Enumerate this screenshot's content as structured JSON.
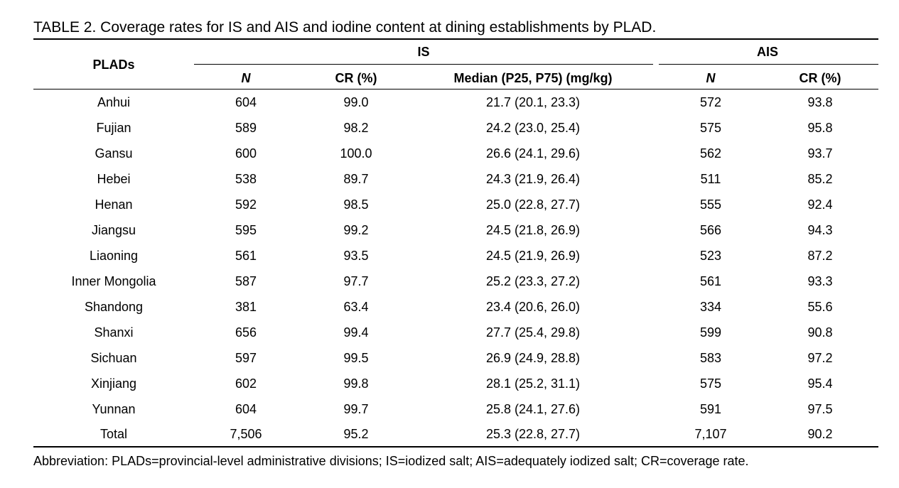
{
  "caption": "TABLE 2. Coverage rates for IS and AIS and iodine content at dining establishments by PLAD.",
  "headers": {
    "plads": "PLADs",
    "is_group": "IS",
    "ais_group": "AIS",
    "is_n": "N",
    "is_cr": "CR (%)",
    "is_median": "Median (P25, P75) (mg/kg)",
    "ais_n": "N",
    "ais_cr": "CR (%)"
  },
  "rows": [
    {
      "plad": "Anhui",
      "is_n": "604",
      "is_cr": "99.0",
      "median": "21.7 (20.1, 23.3)",
      "ais_n": "572",
      "ais_cr": "93.8"
    },
    {
      "plad": "Fujian",
      "is_n": "589",
      "is_cr": "98.2",
      "median": "24.2 (23.0, 25.4)",
      "ais_n": "575",
      "ais_cr": "95.8"
    },
    {
      "plad": "Gansu",
      "is_n": "600",
      "is_cr": "100.0",
      "median": "26.6 (24.1, 29.6)",
      "ais_n": "562",
      "ais_cr": "93.7"
    },
    {
      "plad": "Hebei",
      "is_n": "538",
      "is_cr": "89.7",
      "median": "24.3 (21.9, 26.4)",
      "ais_n": "511",
      "ais_cr": "85.2"
    },
    {
      "plad": "Henan",
      "is_n": "592",
      "is_cr": "98.5",
      "median": "25.0 (22.8, 27.7)",
      "ais_n": "555",
      "ais_cr": "92.4"
    },
    {
      "plad": "Jiangsu",
      "is_n": "595",
      "is_cr": "99.2",
      "median": "24.5 (21.8, 26.9)",
      "ais_n": "566",
      "ais_cr": "94.3"
    },
    {
      "plad": "Liaoning",
      "is_n": "561",
      "is_cr": "93.5",
      "median": "24.5 (21.9, 26.9)",
      "ais_n": "523",
      "ais_cr": "87.2"
    },
    {
      "plad": "Inner Mongolia",
      "is_n": "587",
      "is_cr": "97.7",
      "median": "25.2 (23.3, 27.2)",
      "ais_n": "561",
      "ais_cr": "93.3"
    },
    {
      "plad": "Shandong",
      "is_n": "381",
      "is_cr": "63.4",
      "median": "23.4 (20.6, 26.0)",
      "ais_n": "334",
      "ais_cr": "55.6"
    },
    {
      "plad": "Shanxi",
      "is_n": "656",
      "is_cr": "99.4",
      "median": "27.7 (25.4, 29.8)",
      "ais_n": "599",
      "ais_cr": "90.8"
    },
    {
      "plad": "Sichuan",
      "is_n": "597",
      "is_cr": "99.5",
      "median": "26.9 (24.9, 28.8)",
      "ais_n": "583",
      "ais_cr": "97.2"
    },
    {
      "plad": "Xinjiang",
      "is_n": "602",
      "is_cr": "99.8",
      "median": "28.1 (25.2, 31.1)",
      "ais_n": "575",
      "ais_cr": "95.4"
    },
    {
      "plad": "Yunnan",
      "is_n": "604",
      "is_cr": "99.7",
      "median": "25.8 (24.1, 27.6)",
      "ais_n": "591",
      "ais_cr": "97.5"
    },
    {
      "plad": "Total",
      "is_n": "7,506",
      "is_cr": "95.2",
      "median": "25.3 (22.8, 27.7)",
      "ais_n": "7,107",
      "ais_cr": "90.2"
    }
  ],
  "footnote": "Abbreviation: PLADs=provincial-level administrative divisions; IS=iodized salt; AIS=adequately iodized salt; CR=coverage rate."
}
